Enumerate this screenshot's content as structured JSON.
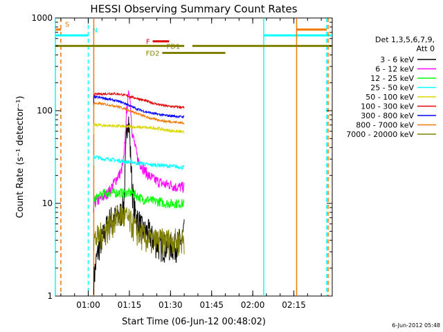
{
  "chart_data": {
    "type": "line",
    "title": "HESSI Observing Summary Count Rates",
    "xlabel": "Start Time (06-Jun-12 00:48:02)",
    "ylabel": "Count Rate (s⁻¹ detector⁻¹)",
    "yscale": "log",
    "ylim": [
      1,
      1000
    ],
    "xlim_minutes": [
      0,
      101
    ],
    "x_unit": "minutes after 00:48:02",
    "x_ticks": [
      {
        "label": "01:00",
        "minutes": 12
      },
      {
        "label": "01:15",
        "minutes": 27
      },
      {
        "label": "01:30",
        "minutes": 42
      },
      {
        "label": "01:45",
        "minutes": 57
      },
      {
        "label": "02:00",
        "minutes": 72
      },
      {
        "label": "02:15",
        "minutes": 87
      }
    ],
    "y_ticks": [
      {
        "label": "1",
        "value": 1
      },
      {
        "label": "10",
        "value": 10
      },
      {
        "label": "100",
        "value": 100
      },
      {
        "label": "1000",
        "value": 1000
      }
    ],
    "legend": {
      "title_lines": [
        "Det 1,3,5,6,7,9,",
        "Att 0"
      ],
      "placement": "right",
      "entries": [
        {
          "label": "3 - 6 keV",
          "color": "#000000"
        },
        {
          "label": "6 - 12 keV",
          "color": "#ff00ff"
        },
        {
          "label": "12 - 25 keV",
          "color": "#00ff00"
        },
        {
          "label": "25 - 50 keV",
          "color": "#00ffff"
        },
        {
          "label": "50 - 100 keV",
          "color": "#d8d800"
        },
        {
          "label": "100 - 300 keV",
          "color": "#e00000"
        },
        {
          "label": "300 - 800 keV",
          "color": "#0000ff"
        },
        {
          "label": "800 - 7000 keV",
          "color": "#f07800"
        },
        {
          "label": "7000 - 20000 keV",
          "color": "#808000"
        }
      ]
    },
    "series": [
      {
        "name": "3 - 6 keV",
        "color": "#000000",
        "x": [
          14,
          15,
          16,
          18,
          20,
          22,
          24,
          25,
          26,
          26.5,
          27,
          28,
          29,
          30,
          31,
          32,
          34,
          36,
          38,
          40,
          42,
          44,
          45,
          46,
          47
        ],
        "y": [
          1.5,
          2.5,
          3.5,
          5,
          7,
          7,
          8,
          10,
          60,
          100,
          60,
          15,
          8,
          7,
          6,
          5,
          5,
          4,
          3.5,
          3.5,
          3.5,
          3.5,
          4,
          4,
          5
        ]
      },
      {
        "name": "6 - 12 keV",
        "color": "#ff00ff",
        "x": [
          14,
          16,
          18,
          20,
          22,
          24,
          25,
          26,
          27,
          28,
          30,
          32,
          34,
          36,
          38,
          40,
          42,
          44,
          46,
          47
        ],
        "y": [
          10,
          11,
          12,
          14,
          18,
          22,
          30,
          100,
          170,
          60,
          30,
          24,
          20,
          18,
          17,
          16,
          16,
          15,
          15,
          15
        ]
      },
      {
        "name": "12 - 25 keV",
        "color": "#00ff00",
        "x": [
          14,
          16,
          18,
          20,
          22,
          24,
          26,
          28,
          30,
          32,
          34,
          36,
          38,
          40,
          42,
          44,
          46,
          47
        ],
        "y": [
          11,
          12,
          13,
          13,
          13,
          13,
          13,
          13,
          12,
          11,
          11,
          10.5,
          10.5,
          10,
          10,
          10,
          10,
          10
        ]
      },
      {
        "name": "25 - 50 keV",
        "color": "#00ffff",
        "x": [
          14,
          16,
          18,
          20,
          22,
          24,
          26,
          28,
          30,
          32,
          34,
          36,
          38,
          40,
          42,
          44,
          46,
          47
        ],
        "y": [
          32,
          31,
          30,
          30,
          29,
          29,
          28,
          28,
          27,
          27,
          26,
          26,
          26,
          25.5,
          25,
          25,
          24.5,
          24.5
        ]
      },
      {
        "name": "50 - 100 keV",
        "color": "#d8d800",
        "x": [
          14,
          16,
          18,
          20,
          22,
          24,
          26,
          28,
          30,
          32,
          34,
          36,
          38,
          40,
          42,
          44,
          46,
          47
        ],
        "y": [
          70,
          70,
          69,
          69,
          68,
          68,
          67,
          67,
          66,
          66,
          65,
          65,
          64,
          62,
          61,
          60,
          59,
          58
        ]
      },
      {
        "name": "100 - 300 keV",
        "color": "#e00000",
        "x": [
          14,
          16,
          18,
          20,
          22,
          24,
          26,
          28,
          30,
          32,
          34,
          36,
          38,
          40,
          42,
          44,
          46,
          47
        ],
        "y": [
          150,
          151,
          152,
          153,
          152,
          150,
          145,
          140,
          135,
          130,
          125,
          120,
          116,
          113,
          111,
          110,
          109,
          108
        ]
      },
      {
        "name": "300 - 800 keV",
        "color": "#0000ff",
        "x": [
          14,
          16,
          18,
          20,
          22,
          24,
          26,
          28,
          30,
          32,
          34,
          36,
          38,
          40,
          42,
          44,
          46,
          47
        ],
        "y": [
          140,
          139,
          136,
          132,
          128,
          124,
          118,
          110,
          104,
          99,
          96,
          93,
          91,
          89,
          88,
          87,
          86,
          86
        ]
      },
      {
        "name": "800 - 7000 keV",
        "color": "#f07800",
        "x": [
          14,
          16,
          18,
          20,
          22,
          24,
          26,
          28,
          30,
          32,
          34,
          36,
          38,
          40,
          42,
          44,
          46,
          47
        ],
        "y": [
          120,
          119,
          117,
          115,
          112,
          108,
          103,
          98,
          93,
          88,
          84,
          81,
          79,
          77,
          76,
          75,
          74,
          74
        ]
      },
      {
        "name": "7000 - 20000 keV",
        "color": "#808000",
        "x": [
          14,
          16,
          18,
          20,
          22,
          24,
          26,
          28,
          30,
          32,
          34,
          36,
          38,
          40,
          42,
          44,
          46,
          47
        ],
        "y": [
          4,
          4.5,
          5,
          6,
          7,
          7.5,
          7,
          6,
          5,
          4.5,
          4,
          4,
          4,
          4,
          4,
          4,
          4,
          4
        ]
      }
    ],
    "markers": [
      {
        "label": "S",
        "color": "#f07800",
        "style": "dashed",
        "x": 2,
        "bar_x": [
          0,
          2
        ],
        "bar_y": 750
      },
      {
        "label": "N",
        "color": "#00ffff",
        "style": "dashed",
        "x": 12,
        "bar_x": [
          0,
          12
        ],
        "bar_y": 650
      },
      {
        "label": "",
        "color": "#00ffff",
        "style": "solid",
        "x": 76,
        "bar_x": [
          76,
          101
        ],
        "bar_y": 650
      },
      {
        "label": "",
        "color": "#f07800",
        "style": "solid",
        "x": 88,
        "bar_x": [
          88,
          99
        ],
        "bar_y": 750
      },
      {
        "label": "",
        "color": "#00ffff",
        "style": "solid",
        "x": 0,
        "bar_x": null,
        "bar_y": null
      },
      {
        "label": "",
        "color": "#f07800",
        "style": "solid",
        "x": 14,
        "bar_x": null,
        "bar_y": null
      },
      {
        "label": "",
        "color": "#00ffff",
        "style": "dashed",
        "x": 99,
        "bar_x": null,
        "bar_y": null
      },
      {
        "label": "",
        "color": "#f07800",
        "style": "dashed",
        "x": 99.5,
        "bar_x": null,
        "bar_y": null
      }
    ],
    "flag_bars": [
      {
        "label": "",
        "color": "#808000",
        "x": [
          0,
          39
        ],
        "y": 500
      },
      {
        "label": "FD1",
        "color": "#808000",
        "x": [
          39,
          47
        ],
        "y": 500
      },
      {
        "label": "",
        "color": "#808000",
        "x": [
          50,
          101
        ],
        "y": 500
      },
      {
        "label": "FD2",
        "color": "#808000",
        "x": [
          39,
          62
        ],
        "y": 420
      },
      {
        "label": "F",
        "color": "#e00000",
        "x": [
          35.5,
          41.5
        ],
        "y": 560
      }
    ],
    "footer_timestamp": "6-Jun-2012 05:48"
  }
}
